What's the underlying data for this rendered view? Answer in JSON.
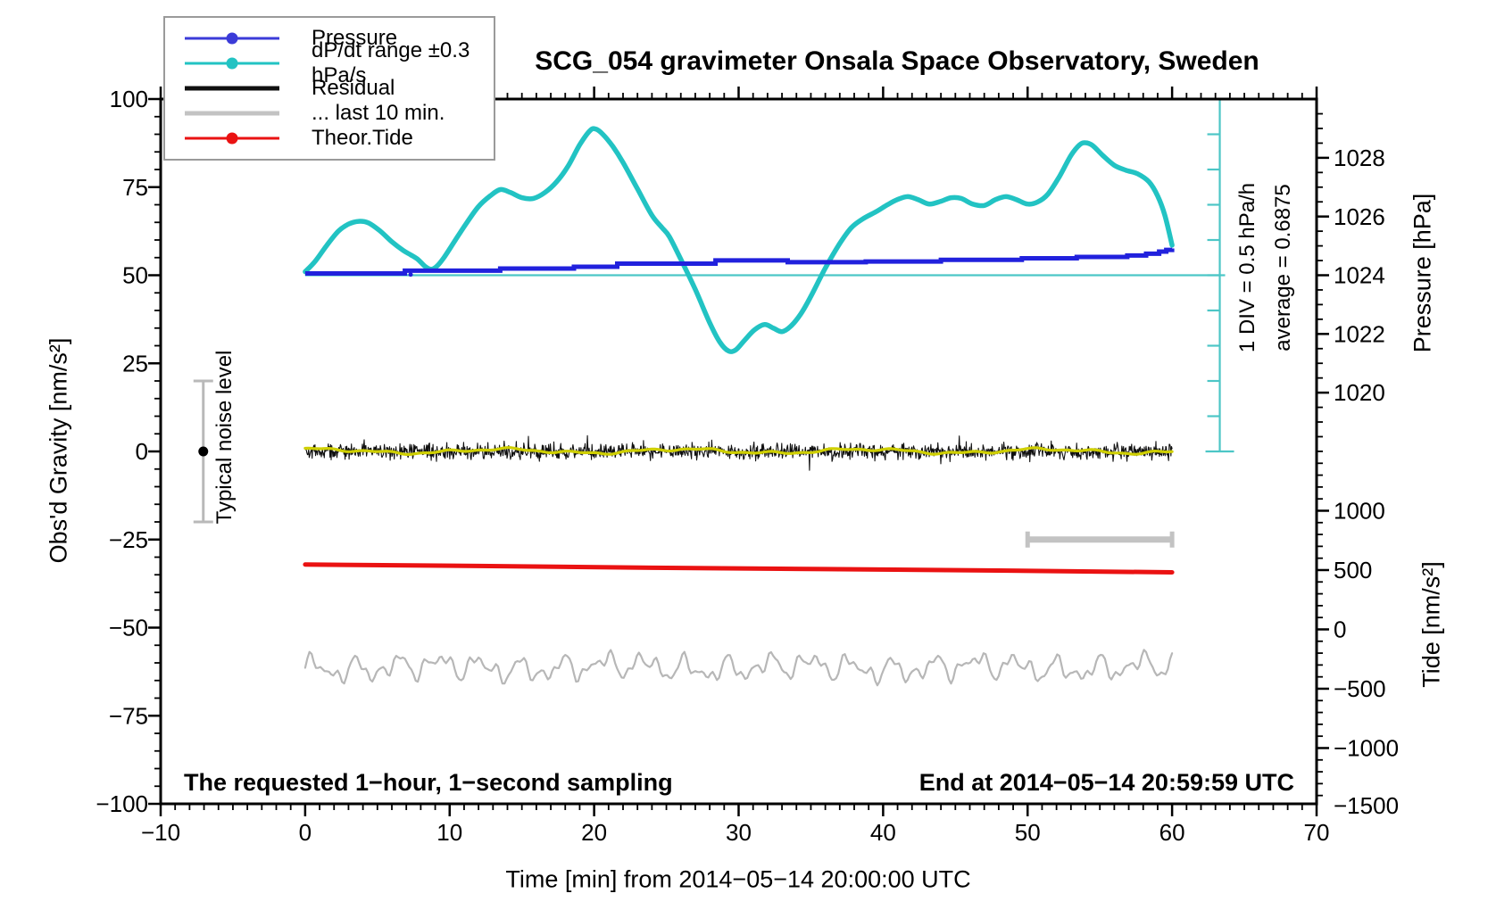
{
  "title": "SCG_054 gravimeter Onsala Space Observatory, Sweden",
  "labels": {
    "y_left": "Obs'd Gravity [nm/s²]",
    "y_right_pressure": "Pressure [hPa]",
    "y_right_tide": "Tide [nm/s²]",
    "x": "Time [min] from 2014−05−14 20:00:00 UTC",
    "bottom_left": "The requested 1−hour, 1−second sampling",
    "bottom_right": "End at 2014−05−14 20:59:59 UTC",
    "div_scale": "1 DIV = 0.5 hPa/h",
    "average": "average = 0.6875",
    "noise": "Typical noise level"
  },
  "legend": {
    "items": [
      {
        "label": "Pressure",
        "color": "#3b3bd8",
        "marker": true,
        "thick": false
      },
      {
        "label": "dP/dt range ±0.3 hPa/s",
        "color": "#22c3c3",
        "marker": true,
        "thick": false
      },
      {
        "label": "Residual",
        "color": "#101010",
        "marker": false,
        "thick": true
      },
      {
        "label": "... last 10 min.",
        "color": "#c3c3c3",
        "marker": false,
        "thick": true
      },
      {
        "label": "Theor.Tide",
        "color": "#ea1212",
        "marker": true,
        "thick": false
      }
    ]
  },
  "colors": {
    "pressure": "#2121dd",
    "dpdt": "#22c3c3",
    "dpdt_thin": "#4cc6c6",
    "residual": "#101010",
    "residual_smooth": "#cfcf00",
    "last10_trace": "#b7b7b7",
    "last10_bar": "#c3c3c3",
    "tide": "#ea1212",
    "noise_bar": "#b9b9b9",
    "frame": "#000000"
  },
  "chart_data": {
    "type": "line",
    "title": "SCG_054 gravimeter Onsala Space Observatory, Sweden",
    "xlabel": "Time [min] from 2014−05−14 20:00:00 UTC",
    "x_axis": {
      "range": [
        -10,
        70
      ],
      "major_tick": 10,
      "minor_tick": 1,
      "tick_labels": [
        -10,
        0,
        10,
        20,
        30,
        40,
        50,
        60,
        70
      ]
    },
    "y_axis_left": {
      "label": "Obs'd Gravity [nm/s²]",
      "range": [
        -100,
        100
      ],
      "major_tick": 25,
      "minor_tick": 5,
      "tick_labels": [
        100,
        75,
        50,
        25,
        0,
        -25,
        -50,
        -75,
        -100
      ]
    },
    "y_axis_right_pressure": {
      "label": "Pressure [hPa]",
      "tick_labels": [
        1028,
        1026,
        1024,
        1022,
        1020
      ],
      "minor_tick_hPa": 0.5,
      "anchor_note": "1024 hPa aligns with gravity 50; 1 hPa = 8.33 gravity units"
    },
    "y_axis_right_tide": {
      "label": "Tide [nm/s²]",
      "tick_labels": [
        1000,
        500,
        0,
        -500,
        -1000,
        -1500
      ],
      "minor_tick": 100,
      "anchor_note": "tide 0 aligns with gravity −50.5; 29.7 tide units = 1 gravity unit"
    },
    "grid": false,
    "legend_position": "top-left",
    "series": {
      "pressure": {
        "name": "Pressure",
        "style": "steps",
        "t_min": [
          0,
          6.9,
          13.5,
          18.6,
          21.6,
          28.4,
          33.4,
          38.8,
          44,
          49.6,
          53.4,
          56.9,
          58.2,
          59.1,
          59.6,
          60
        ],
        "gravity_axis": [
          50.5,
          51.3,
          51.9,
          52.4,
          53.3,
          54.2,
          53.7,
          53.9,
          54.35,
          54.8,
          55.2,
          55.6,
          56.1,
          56.7,
          57.2,
          57.6
        ],
        "hPa": [
          1024.06,
          1024.16,
          1024.23,
          1024.29,
          1024.4,
          1024.5,
          1024.44,
          1024.47,
          1024.52,
          1024.58,
          1024.62,
          1024.67,
          1024.73,
          1024.8,
          1024.86,
          1024.91
        ],
        "glitch_dot": {
          "t": 7.3,
          "gravity": 50.2
        }
      },
      "dpdt": {
        "name": "dP/dt range ±0.3 hPa/s",
        "style": "smooth",
        "conversion": "hPa_per_hour = 0.6875 + (gravity_axis − 50) × 0.05 ; 1 DIV = 0.5 hPa/h",
        "t_min": [
          0,
          0.7,
          1.5,
          2.3,
          3,
          3.7,
          4.4,
          5.2,
          6,
          6.8,
          7.3,
          7.8,
          8.3,
          8.7,
          9.1,
          9.6,
          10.4,
          11.2,
          12,
          12.8,
          13.5,
          14.2,
          15,
          15.8,
          16.6,
          17.4,
          18.2,
          19,
          19.7,
          20.1,
          20.6,
          21.3,
          22,
          23,
          24,
          24.7,
          25.2,
          26,
          27,
          28,
          28.7,
          29.3,
          29.8,
          30.4,
          31.1,
          31.8,
          32.4,
          33,
          33.6,
          34.3,
          35,
          36,
          37,
          37.8,
          38.6,
          39.5,
          40.3,
          41,
          41.7,
          42.4,
          43.2,
          44,
          44.7,
          45.4,
          46.2,
          47,
          47.8,
          48.5,
          49.2,
          50,
          50.7,
          51.4,
          52.2,
          53,
          53.6,
          54,
          54.5,
          55.2,
          56,
          56.8,
          57.6,
          58.4,
          59,
          59.5,
          60
        ],
        "gravity_axis": [
          51,
          54,
          58.5,
          62.5,
          64.5,
          65.3,
          64.8,
          62.5,
          59.5,
          57,
          55.8,
          54.5,
          52.5,
          51.7,
          52.5,
          55,
          60,
          65,
          69.5,
          72.5,
          74.3,
          73.5,
          72,
          71.8,
          73.5,
          76.5,
          81,
          87,
          91,
          91.5,
          90,
          86.5,
          82,
          74.5,
          67,
          63.5,
          61,
          54.5,
          46,
          36.5,
          31,
          28.5,
          28.8,
          31.5,
          34.5,
          36,
          35,
          34,
          35.5,
          39,
          44,
          52,
          59,
          63.5,
          66,
          68,
          70,
          71.5,
          72.3,
          71.5,
          70.2,
          71,
          72,
          71.8,
          70.2,
          69.8,
          71.5,
          72.3,
          71.5,
          70.2,
          70.8,
          73,
          78,
          84,
          87,
          87.6,
          86.8,
          84,
          81.2,
          79.8,
          78.8,
          76.5,
          72.5,
          67,
          58.5
        ]
      },
      "residual": {
        "name": "Residual",
        "style": "noise",
        "t_range": [
          0,
          60
        ],
        "mean_gravity": 0,
        "typical_band_gravity": [
          -2.5,
          2.5
        ],
        "spike_extent_gravity": [
          -5.5,
          5.5
        ],
        "points": 1500,
        "seed": 42,
        "note": "1-second sampled noise around 0 nm/s²"
      },
      "residual_smooth": {
        "name": "Residual smoothed",
        "style": "smooth-overlay",
        "mean_gravity": 0.1,
        "components_amp_freq_phase": [
          [
            0.55,
            0.5,
            1.1
          ],
          [
            0.3,
            1.4,
            0.5
          ],
          [
            0.18,
            3.1,
            2.0
          ]
        ]
      },
      "last10min": {
        "name": "... last 10 min.",
        "style": "wiggle",
        "t_range": [
          0,
          60
        ],
        "center_gravity": -61.3,
        "amplitude_gravity": 5.5,
        "seed": 7,
        "scale": 0.9,
        "components_amp_freq": [
          [
            2.4,
            2.2
          ],
          [
            1.8,
            3.9
          ],
          [
            1.2,
            6.3
          ],
          [
            0.7,
            9.7
          ],
          [
            1.0,
            0.5
          ]
        ]
      },
      "theor_tide": {
        "name": "Theor.Tide",
        "style": "line",
        "t_min": [
          0,
          12,
          24,
          36,
          48,
          60
        ],
        "gravity_axis": [
          -32.1,
          -32.5,
          -33,
          -33.4,
          -33.8,
          -34.3
        ],
        "tide_axis_nms2": [
          541,
          529,
          516,
          504,
          492,
          477
        ]
      }
    },
    "markers": {
      "noise_errorbar": {
        "t": -7.05,
        "gravity_low": -20,
        "gravity_high": 20,
        "center_dot_gravity": 0,
        "label": "Typical noise level"
      },
      "last10_extent_bar": {
        "t0": 50,
        "t1": 60,
        "gravity": -25
      },
      "div_scalebar": {
        "t": 63.3,
        "gravity_top": 100,
        "gravity_bottom": 0,
        "divisions": 10,
        "note": "1 DIV = 0.5 hPa/h"
      },
      "average_line": {
        "gravity": 50,
        "pressure_hPa": 1024,
        "t_start": 0,
        "note": "average = 0.6875"
      }
    }
  }
}
